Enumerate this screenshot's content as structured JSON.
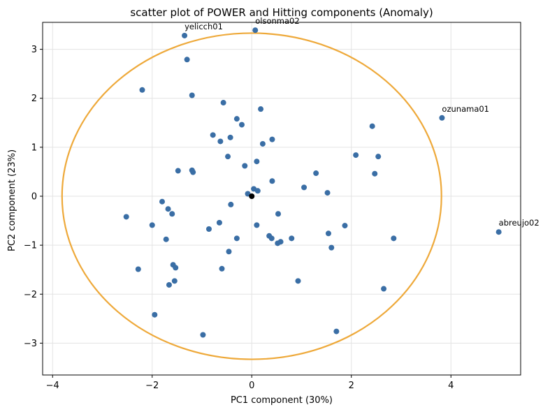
{
  "chart_data": {
    "type": "scatter",
    "title": "scatter plot of POWER and Hitting components (Anomaly)",
    "xlabel": "PC1 component (30%)",
    "ylabel": "PC2 component (23%)",
    "xlim": [
      -4.2,
      5.4
    ],
    "ylim": [
      -3.65,
      3.55
    ],
    "xticks": [
      -4,
      -2,
      0,
      2,
      4
    ],
    "yticks": [
      -3,
      -2,
      -1,
      0,
      1,
      2,
      3
    ],
    "grid": true,
    "point_color": "#3a6ea5",
    "ellipse_color": "#eea93a",
    "ellipse": {
      "cx": 0,
      "cy": 0,
      "rx": 3.81,
      "ry": 3.33
    },
    "origin_marker": [
      0,
      0
    ],
    "points": [
      [
        0.07,
        3.39
      ],
      [
        -1.35,
        3.28
      ],
      [
        -1.3,
        2.79
      ],
      [
        -2.2,
        2.17
      ],
      [
        -1.2,
        2.06
      ],
      [
        -0.57,
        1.91
      ],
      [
        0.18,
        1.78
      ],
      [
        -0.3,
        1.58
      ],
      [
        -0.2,
        1.46
      ],
      [
        -0.78,
        1.25
      ],
      [
        -0.63,
        1.12
      ],
      [
        -0.43,
        1.2
      ],
      [
        0.22,
        1.07
      ],
      [
        0.41,
        1.16
      ],
      [
        -0.48,
        0.81
      ],
      [
        0.1,
        0.71
      ],
      [
        -0.14,
        0.62
      ],
      [
        -1.48,
        0.52
      ],
      [
        -1.2,
        0.53
      ],
      [
        -1.18,
        0.49
      ],
      [
        0.41,
        0.31
      ],
      [
        0.04,
        0.15
      ],
      [
        0.12,
        0.11
      ],
      [
        -0.08,
        0.05
      ],
      [
        -1.8,
        -0.11
      ],
      [
        -1.68,
        -0.26
      ],
      [
        -1.6,
        -0.36
      ],
      [
        -0.42,
        -0.17
      ],
      [
        -2.52,
        -0.42
      ],
      [
        -2.0,
        -0.59
      ],
      [
        -0.65,
        -0.54
      ],
      [
        -0.86,
        -0.67
      ],
      [
        0.1,
        -0.59
      ],
      [
        0.53,
        -0.36
      ],
      [
        -0.3,
        -0.86
      ],
      [
        -1.72,
        -0.88
      ],
      [
        0.35,
        -0.81
      ],
      [
        0.4,
        -0.86
      ],
      [
        0.52,
        -0.96
      ],
      [
        0.58,
        -0.93
      ],
      [
        0.8,
        -0.86
      ],
      [
        -0.46,
        -1.13
      ],
      [
        -1.58,
        -1.4
      ],
      [
        -1.53,
        -1.46
      ],
      [
        -0.6,
        -1.48
      ],
      [
        -2.28,
        -1.49
      ],
      [
        -1.55,
        -1.73
      ],
      [
        -1.66,
        -1.81
      ],
      [
        0.93,
        -1.73
      ],
      [
        -1.95,
        -2.42
      ],
      [
        -0.98,
        -2.83
      ],
      [
        1.7,
        -2.76
      ],
      [
        2.65,
        -1.89
      ],
      [
        1.05,
        0.18
      ],
      [
        1.29,
        0.47
      ],
      [
        1.52,
        0.07
      ],
      [
        1.54,
        -0.76
      ],
      [
        1.6,
        -1.05
      ],
      [
        1.87,
        -0.6
      ],
      [
        2.09,
        0.84
      ],
      [
        2.42,
        1.43
      ],
      [
        2.47,
        0.46
      ],
      [
        2.54,
        0.81
      ],
      [
        2.85,
        -0.86
      ],
      [
        3.82,
        1.6
      ],
      [
        4.96,
        -0.73
      ]
    ],
    "annotations": [
      {
        "text": "olsonma02",
        "x": 0.07,
        "y": 3.39
      },
      {
        "text": "yelicch01",
        "x": -1.35,
        "y": 3.28
      },
      {
        "text": "ozunama01",
        "x": 3.82,
        "y": 1.6
      },
      {
        "text": "abreujo02",
        "x": 4.96,
        "y": -0.73
      }
    ]
  }
}
